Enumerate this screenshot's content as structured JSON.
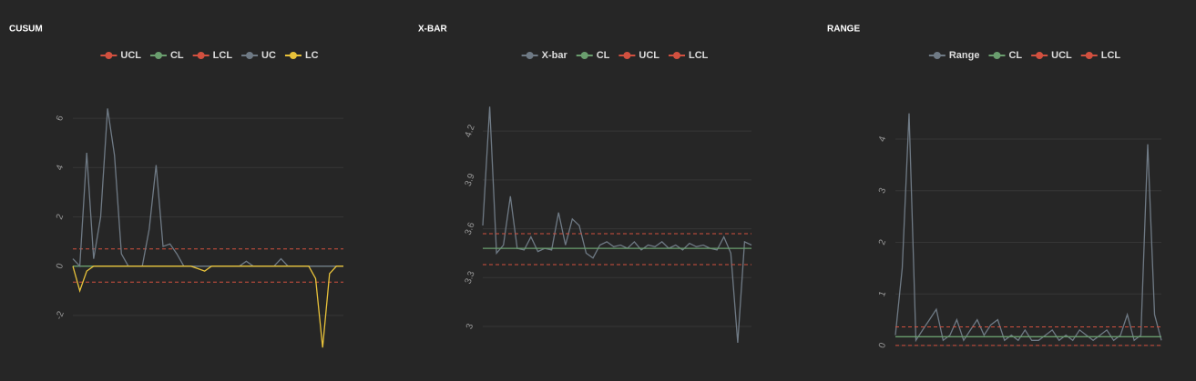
{
  "chart_data": [
    {
      "type": "line",
      "title": "CUSUM",
      "grid": true,
      "x": [
        1,
        2,
        3,
        4,
        5,
        6,
        7,
        8,
        9,
        10,
        11,
        12,
        13,
        14,
        15,
        16,
        17,
        18,
        19,
        20,
        21,
        22,
        23,
        24,
        25,
        26,
        27,
        28,
        29,
        30,
        31,
        32,
        33,
        34,
        35,
        36,
        37,
        38,
        39,
        40
      ],
      "ylim": [
        -3.7,
        7
      ],
      "yticks": [
        -2,
        0,
        2,
        4,
        6
      ],
      "series": [
        {
          "name": "UCL",
          "color": "#d2503f",
          "dashed": true,
          "values": [
            0.7,
            0.7,
            0.7,
            0.7,
            0.7,
            0.7,
            0.7,
            0.7,
            0.7,
            0.7,
            0.7,
            0.7,
            0.7,
            0.7,
            0.7,
            0.7,
            0.7,
            0.7,
            0.7,
            0.7,
            0.7,
            0.7,
            0.7,
            0.7,
            0.7,
            0.7,
            0.7,
            0.7,
            0.7,
            0.7,
            0.7,
            0.7,
            0.7,
            0.7,
            0.7,
            0.7,
            0.7,
            0.7,
            0.7,
            0.7
          ]
        },
        {
          "name": "CL",
          "color": "#6a9e6e",
          "dashed": false,
          "values": [
            0,
            0,
            0,
            0,
            0,
            0,
            0,
            0,
            0,
            0,
            0,
            0,
            0,
            0,
            0,
            0,
            0,
            0,
            0,
            0,
            0,
            0,
            0,
            0,
            0,
            0,
            0,
            0,
            0,
            0,
            0,
            0,
            0,
            0,
            0,
            0,
            0,
            0,
            0,
            0
          ]
        },
        {
          "name": "LCL",
          "color": "#d2503f",
          "dashed": true,
          "values": [
            -0.65,
            -0.65,
            -0.65,
            -0.65,
            -0.65,
            -0.65,
            -0.65,
            -0.65,
            -0.65,
            -0.65,
            -0.65,
            -0.65,
            -0.65,
            -0.65,
            -0.65,
            -0.65,
            -0.65,
            -0.65,
            -0.65,
            -0.65,
            -0.65,
            -0.65,
            -0.65,
            -0.65,
            -0.65,
            -0.65,
            -0.65,
            -0.65,
            -0.65,
            -0.65,
            -0.65,
            -0.65,
            -0.65,
            -0.65,
            -0.65,
            -0.65,
            -0.65,
            -0.65,
            -0.65,
            -0.65
          ]
        },
        {
          "name": "UC",
          "color": "#6f7a85",
          "dashed": false,
          "values": [
            0.3,
            0,
            4.6,
            0.3,
            2,
            6.4,
            4.5,
            0.5,
            0,
            0,
            0,
            1.5,
            4.1,
            0.8,
            0.9,
            0.5,
            0,
            0,
            0,
            0,
            0,
            0,
            0,
            0,
            0,
            0.2,
            0,
            0,
            0,
            0,
            0.3,
            0,
            0,
            0,
            0,
            0,
            0,
            0,
            0,
            0
          ]
        },
        {
          "name": "LC",
          "color": "#e8c23a",
          "dashed": false,
          "values": [
            0,
            -1,
            -0.2,
            0,
            0,
            0,
            0,
            0,
            0,
            0,
            0,
            0,
            0,
            0,
            0,
            0,
            0,
            0,
            -0.1,
            -0.2,
            0,
            0,
            0,
            0,
            0,
            0,
            0,
            0,
            0,
            0,
            0,
            0,
            0,
            0,
            0,
            -0.5,
            -3.3,
            -0.3,
            0,
            0
          ]
        }
      ]
    },
    {
      "type": "line",
      "title": "X-BAR",
      "grid": true,
      "x": [
        1,
        2,
        3,
        4,
        5,
        6,
        7,
        8,
        9,
        10,
        11,
        12,
        13,
        14,
        15,
        16,
        17,
        18,
        19,
        20,
        21,
        22,
        23,
        24,
        25,
        26,
        27,
        28,
        29,
        30,
        31,
        32,
        33,
        34,
        35,
        36,
        37,
        38,
        39,
        40
      ],
      "ylim": [
        2.81,
        4.43
      ],
      "yticks": [
        3,
        3.3,
        3.6,
        3.9,
        4.2
      ],
      "series": [
        {
          "name": "X-bar",
          "color": "#6f7a85",
          "dashed": false,
          "values": [
            3.62,
            4.35,
            3.45,
            3.5,
            3.8,
            3.48,
            3.47,
            3.55,
            3.46,
            3.48,
            3.47,
            3.7,
            3.5,
            3.66,
            3.62,
            3.45,
            3.42,
            3.5,
            3.52,
            3.49,
            3.5,
            3.48,
            3.52,
            3.47,
            3.5,
            3.49,
            3.52,
            3.48,
            3.5,
            3.47,
            3.51,
            3.49,
            3.5,
            3.48,
            3.47,
            3.55,
            3.45,
            2.9,
            3.52,
            3.5
          ]
        },
        {
          "name": "CL",
          "color": "#6a9e6e",
          "dashed": false,
          "values": [
            3.48,
            3.48,
            3.48,
            3.48,
            3.48,
            3.48,
            3.48,
            3.48,
            3.48,
            3.48,
            3.48,
            3.48,
            3.48,
            3.48,
            3.48,
            3.48,
            3.48,
            3.48,
            3.48,
            3.48,
            3.48,
            3.48,
            3.48,
            3.48,
            3.48,
            3.48,
            3.48,
            3.48,
            3.48,
            3.48,
            3.48,
            3.48,
            3.48,
            3.48,
            3.48,
            3.48,
            3.48,
            3.48,
            3.48,
            3.48
          ]
        },
        {
          "name": "UCL",
          "color": "#d2503f",
          "dashed": true,
          "values": [
            3.57,
            3.57,
            3.57,
            3.57,
            3.57,
            3.57,
            3.57,
            3.57,
            3.57,
            3.57,
            3.57,
            3.57,
            3.57,
            3.57,
            3.57,
            3.57,
            3.57,
            3.57,
            3.57,
            3.57,
            3.57,
            3.57,
            3.57,
            3.57,
            3.57,
            3.57,
            3.57,
            3.57,
            3.57,
            3.57,
            3.57,
            3.57,
            3.57,
            3.57,
            3.57,
            3.57,
            3.57,
            3.57,
            3.57,
            3.57
          ]
        },
        {
          "name": "LCL",
          "color": "#d2503f",
          "dashed": true,
          "values": [
            3.38,
            3.38,
            3.38,
            3.38,
            3.38,
            3.38,
            3.38,
            3.38,
            3.38,
            3.38,
            3.38,
            3.38,
            3.38,
            3.38,
            3.38,
            3.38,
            3.38,
            3.38,
            3.38,
            3.38,
            3.38,
            3.38,
            3.38,
            3.38,
            3.38,
            3.38,
            3.38,
            3.38,
            3.38,
            3.38,
            3.38,
            3.38,
            3.38,
            3.38,
            3.38,
            3.38,
            3.38,
            3.38,
            3.38,
            3.38
          ]
        }
      ]
    },
    {
      "type": "line",
      "title": "RANGE",
      "grid": true,
      "x": [
        1,
        2,
        3,
        4,
        5,
        6,
        7,
        8,
        9,
        10,
        11,
        12,
        13,
        14,
        15,
        16,
        17,
        18,
        19,
        20,
        21,
        22,
        23,
        24,
        25,
        26,
        27,
        28,
        29,
        30,
        31,
        32,
        33,
        34,
        35,
        36,
        37,
        38,
        39,
        40
      ],
      "ylim": [
        -0.23,
        4.88
      ],
      "yticks": [
        0,
        1,
        2,
        3,
        4
      ],
      "series": [
        {
          "name": "Range",
          "color": "#6f7a85",
          "dashed": false,
          "values": [
            0.2,
            1.5,
            4.5,
            0.1,
            0.3,
            0.5,
            0.7,
            0.1,
            0.2,
            0.5,
            0.1,
            0.3,
            0.5,
            0.2,
            0.4,
            0.5,
            0.1,
            0.2,
            0.1,
            0.3,
            0.1,
            0.1,
            0.2,
            0.3,
            0.1,
            0.2,
            0.1,
            0.3,
            0.2,
            0.1,
            0.2,
            0.3,
            0.1,
            0.2,
            0.6,
            0.1,
            0.2,
            3.9,
            0.6,
            0.1
          ]
        },
        {
          "name": "CL",
          "color": "#6a9e6e",
          "dashed": false,
          "values": [
            0.17,
            0.17,
            0.17,
            0.17,
            0.17,
            0.17,
            0.17,
            0.17,
            0.17,
            0.17,
            0.17,
            0.17,
            0.17,
            0.17,
            0.17,
            0.17,
            0.17,
            0.17,
            0.17,
            0.17,
            0.17,
            0.17,
            0.17,
            0.17,
            0.17,
            0.17,
            0.17,
            0.17,
            0.17,
            0.17,
            0.17,
            0.17,
            0.17,
            0.17,
            0.17,
            0.17,
            0.17,
            0.17,
            0.17,
            0.17
          ]
        },
        {
          "name": "UCL",
          "color": "#d2503f",
          "dashed": true,
          "values": [
            0.36,
            0.36,
            0.36,
            0.36,
            0.36,
            0.36,
            0.36,
            0.36,
            0.36,
            0.36,
            0.36,
            0.36,
            0.36,
            0.36,
            0.36,
            0.36,
            0.36,
            0.36,
            0.36,
            0.36,
            0.36,
            0.36,
            0.36,
            0.36,
            0.36,
            0.36,
            0.36,
            0.36,
            0.36,
            0.36,
            0.36,
            0.36,
            0.36,
            0.36,
            0.36,
            0.36,
            0.36,
            0.36,
            0.36,
            0.36
          ]
        },
        {
          "name": "LCL",
          "color": "#d2503f",
          "dashed": true,
          "values": [
            0,
            0,
            0,
            0,
            0,
            0,
            0,
            0,
            0,
            0,
            0,
            0,
            0,
            0,
            0,
            0,
            0,
            0,
            0,
            0,
            0,
            0,
            0,
            0,
            0,
            0,
            0,
            0,
            0,
            0,
            0,
            0,
            0,
            0,
            0,
            0,
            0,
            0,
            0,
            0
          ]
        }
      ]
    }
  ]
}
